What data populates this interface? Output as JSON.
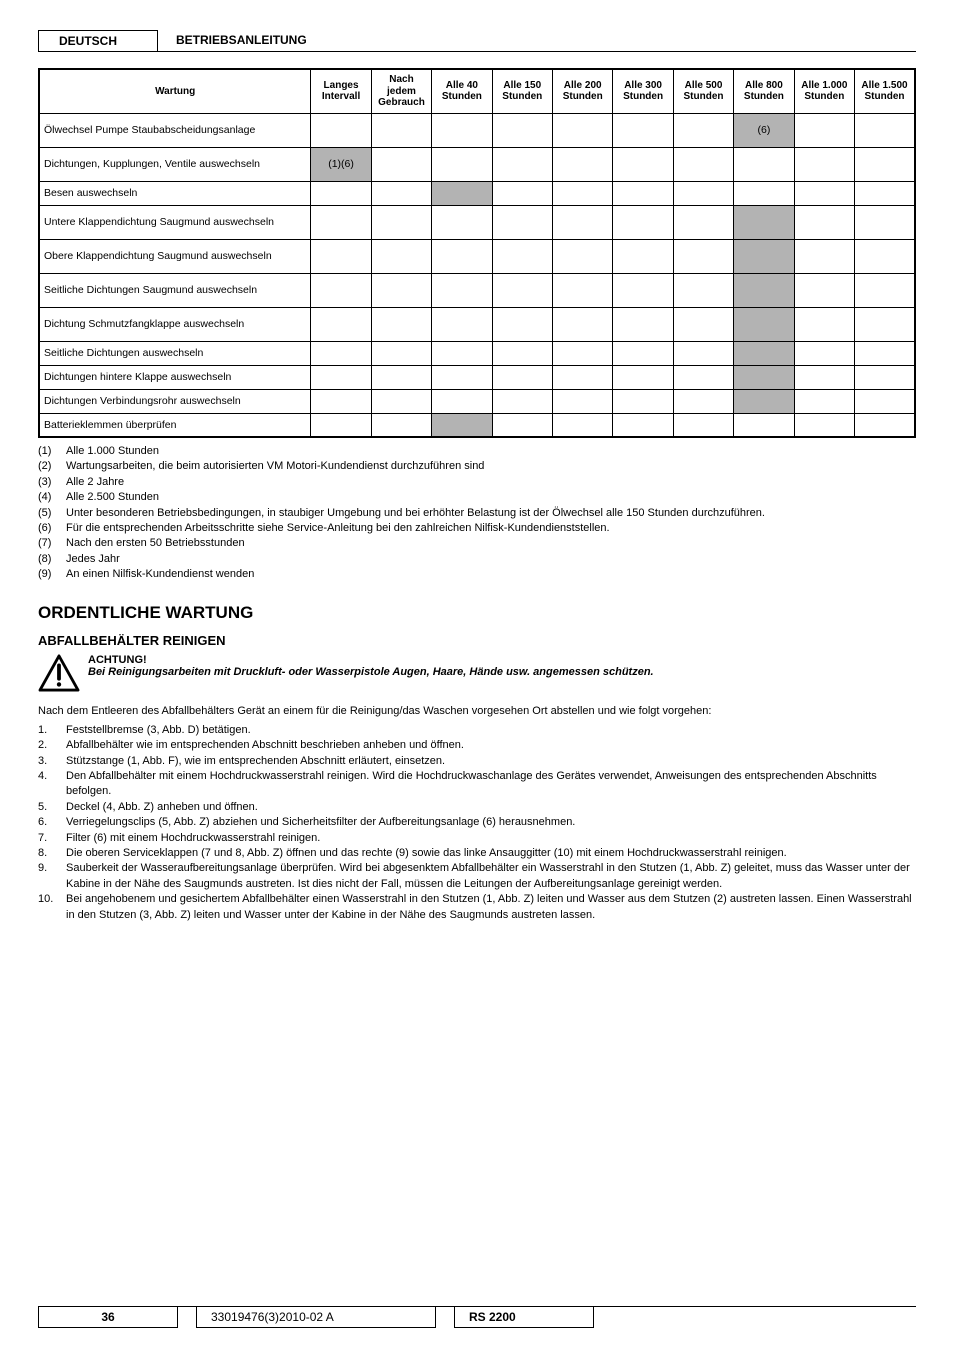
{
  "header": {
    "lang": "DEUTSCH",
    "doc": "BETRIEBSANLEITUNG"
  },
  "table": {
    "columns": [
      "Wartung",
      "Langes Intervall",
      "Nach jedem Gebrauch",
      "Alle 40 Stunden",
      "Alle 150 Stunden",
      "Alle 200 Stunden",
      "Alle 300 Stunden",
      "Alle 500 Stunden",
      "Alle 800 Stunden",
      "Alle 1.000 Stunden",
      "Alle 1.500 Stunden"
    ],
    "rows": [
      {
        "label": "Ölwechsel Pumpe Staubabscheidungsanlage",
        "tall": true,
        "cells": [
          "",
          "",
          "",
          "",
          "",
          "",
          "",
          "(6)",
          "",
          ""
        ],
        "shaded": [
          8
        ]
      },
      {
        "label": "Dichtungen, Kupplungen, Ventile auswechseln",
        "tall": true,
        "cells": [
          "(1)(6)",
          "",
          "",
          "",
          "",
          "",
          "",
          "",
          "",
          ""
        ],
        "shaded": [
          1
        ]
      },
      {
        "label": "Besen auswechseln",
        "cells": [
          "",
          "",
          "",
          "",
          "",
          "",
          "",
          "",
          "",
          ""
        ],
        "shaded": [
          3
        ]
      },
      {
        "label": "Untere Klappendichtung Saugmund auswechseln",
        "tall": true,
        "cells": [
          "",
          "",
          "",
          "",
          "",
          "",
          "",
          "",
          "",
          ""
        ],
        "shaded": [
          8
        ]
      },
      {
        "label": "Obere Klappendichtung Saugmund auswechseln",
        "tall": true,
        "cells": [
          "",
          "",
          "",
          "",
          "",
          "",
          "",
          "",
          "",
          ""
        ],
        "shaded": [
          8
        ]
      },
      {
        "label": "Seitliche Dichtungen Saugmund auswechseln",
        "tall": true,
        "cells": [
          "",
          "",
          "",
          "",
          "",
          "",
          "",
          "",
          "",
          ""
        ],
        "shaded": [
          8
        ]
      },
      {
        "label": "Dichtung Schmutzfangklappe auswechseln",
        "tall": true,
        "cells": [
          "",
          "",
          "",
          "",
          "",
          "",
          "",
          "",
          "",
          ""
        ],
        "shaded": [
          8
        ]
      },
      {
        "label": "Seitliche Dichtungen auswechseln",
        "cells": [
          "",
          "",
          "",
          "",
          "",
          "",
          "",
          "",
          "",
          ""
        ],
        "shaded": [
          8
        ]
      },
      {
        "label": "Dichtungen hintere Klappe auswechseln",
        "cells": [
          "",
          "",
          "",
          "",
          "",
          "",
          "",
          "",
          "",
          ""
        ],
        "shaded": [
          8
        ]
      },
      {
        "label": "Dichtungen Verbindungsrohr auswechseln",
        "cells": [
          "",
          "",
          "",
          "",
          "",
          "",
          "",
          "",
          "",
          ""
        ],
        "shaded": [
          8
        ]
      },
      {
        "label": "Batterieklemmen überprüfen",
        "cells": [
          "",
          "",
          "",
          "",
          "",
          "",
          "",
          "",
          "",
          ""
        ],
        "shaded": [
          3
        ]
      }
    ]
  },
  "notes": [
    {
      "n": "(1)",
      "t": "Alle 1.000 Stunden"
    },
    {
      "n": "(2)",
      "t": "Wartungsarbeiten, die beim autorisierten VM Motori-Kundendienst durchzuführen sind"
    },
    {
      "n": "(3)",
      "t": "Alle 2 Jahre"
    },
    {
      "n": "(4)",
      "t": "Alle 2.500 Stunden"
    },
    {
      "n": "(5)",
      "t": "Unter besonderen Betriebsbedingungen, in staubiger Umgebung und bei erhöhter Belastung ist der Ölwechsel alle 150 Stunden durchzuführen."
    },
    {
      "n": "(6)",
      "t": "Für die entsprechenden Arbeitsschritte siehe Service-Anleitung bei den zahlreichen Nilfisk-Kundendienststellen."
    },
    {
      "n": "(7)",
      "t": "Nach den ersten 50 Betriebsstunden"
    },
    {
      "n": "(8)",
      "t": "Jedes Jahr"
    },
    {
      "n": "(9)",
      "t": "An einen Nilfisk-Kundendienst wenden"
    }
  ],
  "section_title": "ORDENTLICHE WARTUNG",
  "subsection_title": "ABFALLBEHÄLTER REINIGEN",
  "warning": {
    "title": "ACHTUNG!",
    "body": "Bei Reinigungsarbeiten mit Druckluft- oder Wasserpistole Augen, Haare, Hände usw. angemessen schützen."
  },
  "intro": "Nach dem Entleeren des Abfallbehälters Gerät an einem für die Reinigung/das Waschen vorgesehen Ort abstellen und wie folgt vorgehen:",
  "steps": [
    "Feststellbremse (3, Abb. D) betätigen.",
    "Abfallbehälter wie im entsprechenden Abschnitt beschrieben anheben und öffnen.",
    "Stützstange (1, Abb. F), wie im entsprechenden Abschnitt erläutert, einsetzen.",
    "Den Abfallbehälter mit einem Hochdruckwasserstrahl reinigen. Wird die Hochdruckwaschanlage des Gerätes verwendet, Anweisungen des entsprechenden Abschnitts befolgen.",
    "Deckel (4, Abb. Z) anheben und öffnen.",
    "Verriegelungsclips (5, Abb. Z) abziehen und Sicherheitsfilter der Aufbereitungsanlage (6) herausnehmen.",
    "Filter (6) mit einem Hochdruckwasserstrahl reinigen.",
    "Die oberen Serviceklappen (7 und 8, Abb. Z) öffnen und das rechte (9) sowie das linke Ansauggitter (10) mit einem Hochdruckwasserstrahl reinigen.",
    "Sauberkeit der Wasseraufbereitungsanlage überprüfen. Wird bei abgesenktem Abfallbehälter ein Wasserstrahl in den Stutzen (1, Abb. Z) geleitet, muss das Wasser unter der Kabine in der Nähe des Saugmunds austreten. Ist dies nicht der Fall, müssen die Leitungen der Aufbereitungsanlage gereinigt werden.",
    "Bei angehobenem und gesichertem Abfallbehälter einen Wasserstrahl in den Stutzen (1, Abb. Z) leiten und Wasser aus dem Stutzen (2) austreten lassen. Einen Wasserstrahl in den Stutzen (3, Abb. Z) leiten und Wasser unter der Kabine in der Nähe des Saugmunds austreten lassen."
  ],
  "footer": {
    "page": "36",
    "docid": "33019476(3)2010-02 A",
    "model": "RS 2200"
  }
}
